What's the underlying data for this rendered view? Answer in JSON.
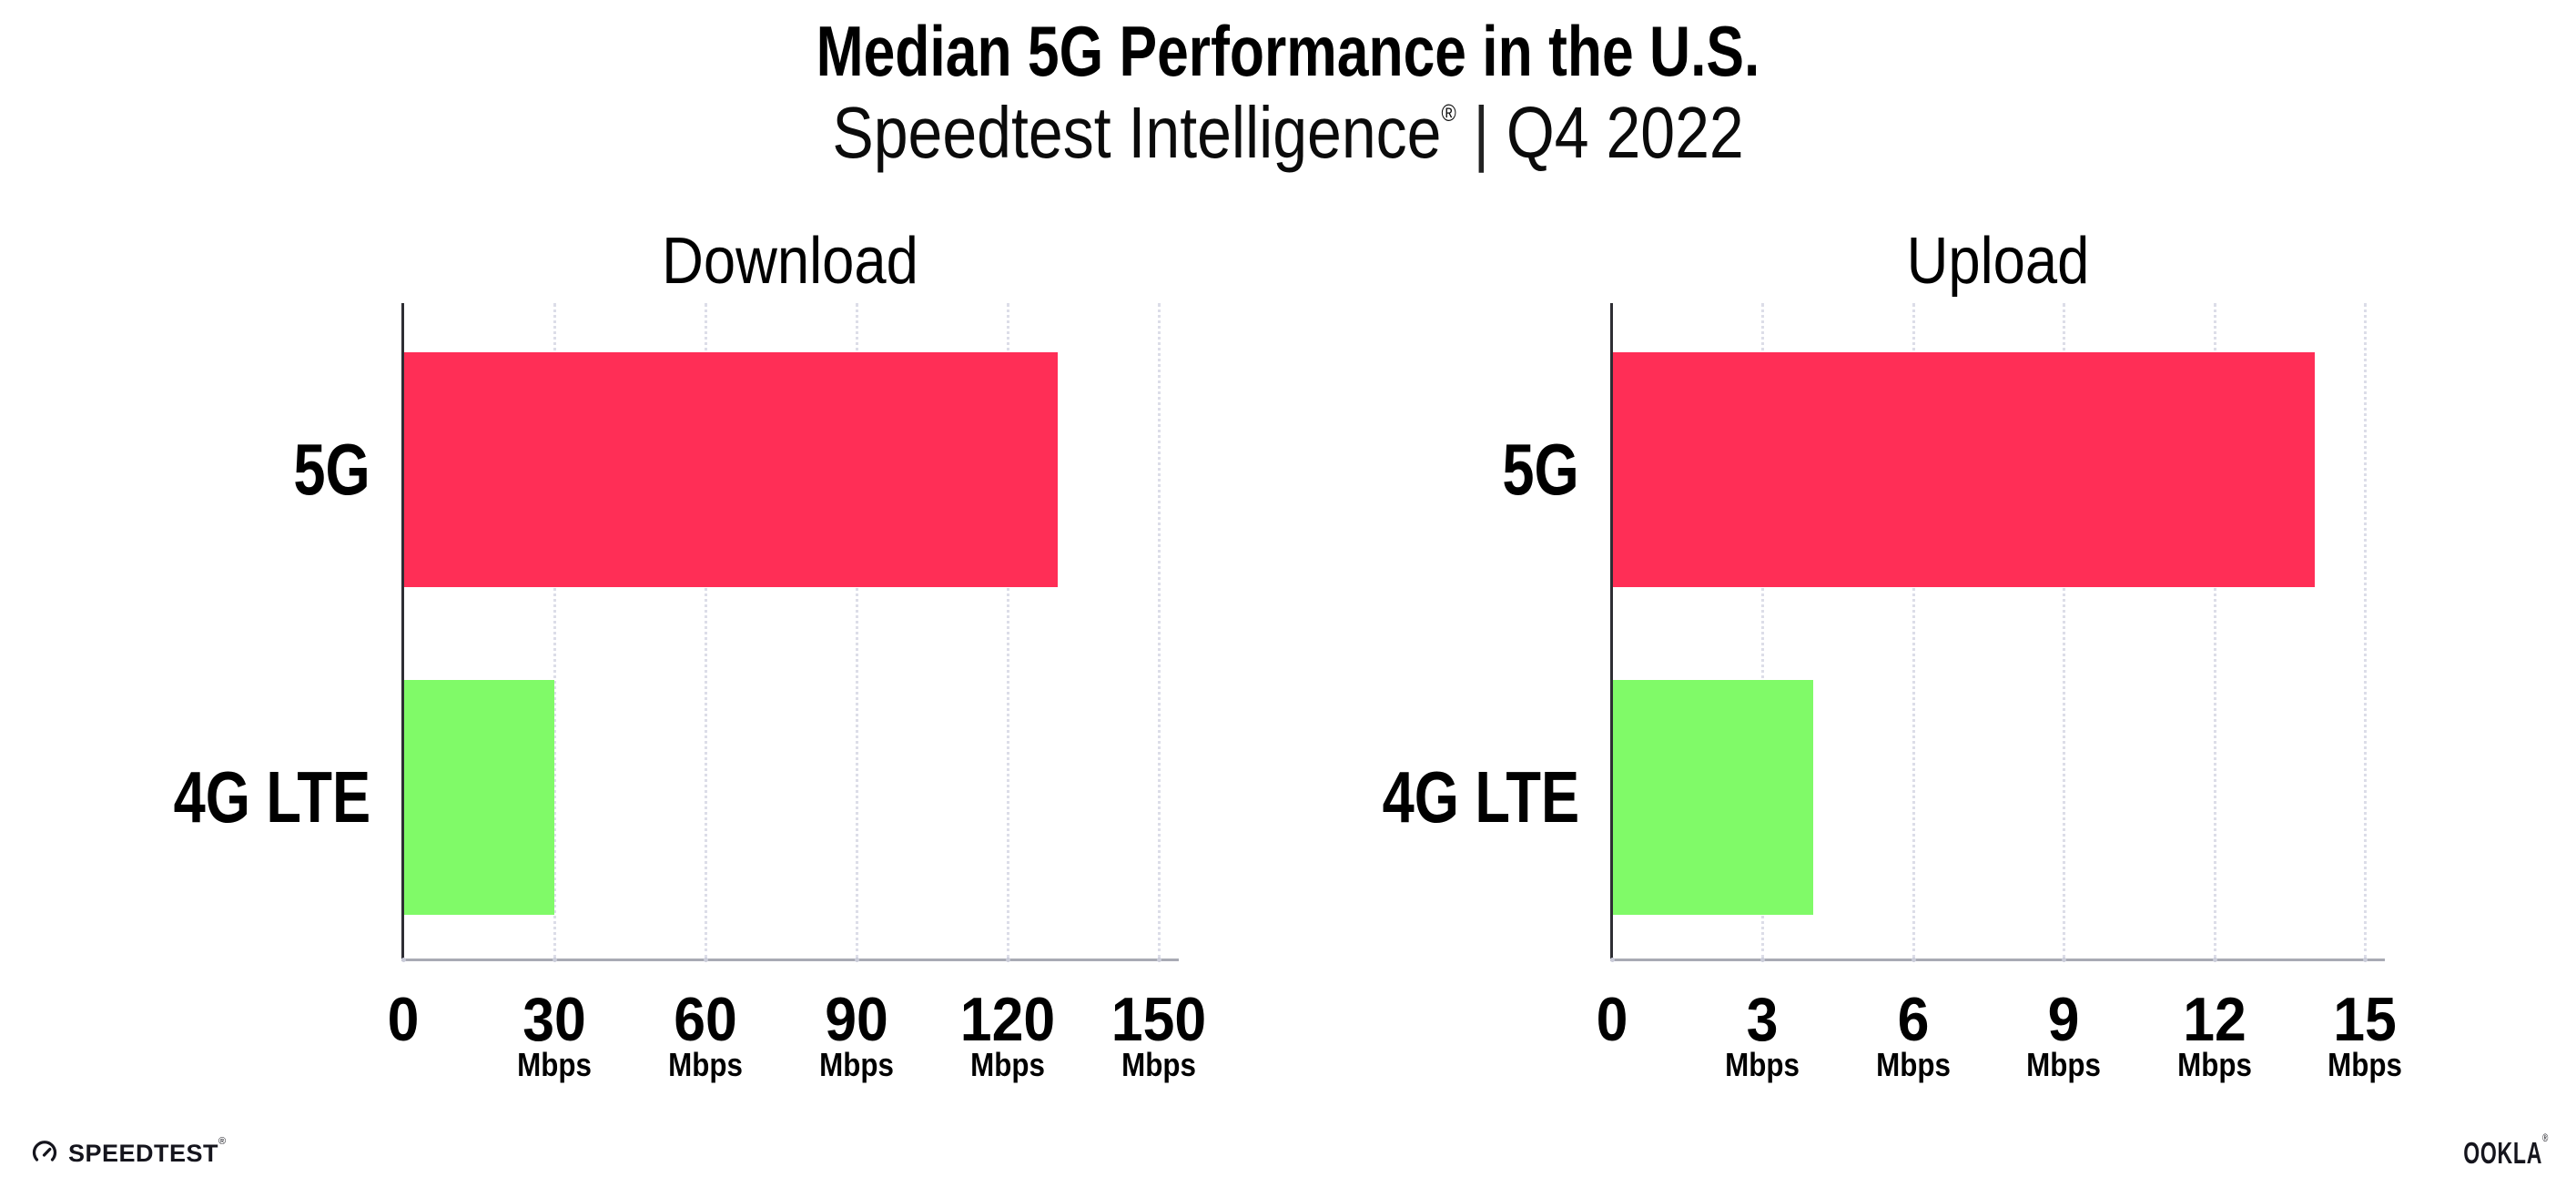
{
  "title": "Median 5G Performance in the U.S.",
  "subtitle": {
    "brand": "Speedtest Intelligence",
    "reg": "®",
    "separator": "|",
    "period": "Q4 2022"
  },
  "colors": {
    "bar_5g": "#FF2E56",
    "bar_4g": "#80FA68",
    "gridline": "#dcdde8",
    "x_axis_line": "#a8aab4",
    "y_axis_line": "#2e2e34",
    "text": "#000000"
  },
  "chart_data": [
    {
      "type": "bar",
      "orientation": "horizontal",
      "title": "Download",
      "categories": [
        "5G",
        "4G LTE"
      ],
      "values": [
        130,
        30
      ],
      "unit": "Mbps",
      "xlim": [
        0,
        150
      ],
      "xticks": [
        0,
        30,
        60,
        90,
        120,
        150
      ],
      "xtick_unit_shown_from_second_tick": true,
      "grid": "vertical-dotted",
      "legend": "none",
      "bar_colors": [
        "#FF2E56",
        "#80FA68"
      ]
    },
    {
      "type": "bar",
      "orientation": "horizontal",
      "title": "Upload",
      "categories": [
        "5G",
        "4G LTE"
      ],
      "values": [
        14,
        4
      ],
      "unit": "Mbps",
      "xlim": [
        0,
        15
      ],
      "xticks": [
        0,
        3,
        6,
        9,
        12,
        15
      ],
      "xtick_unit_shown_from_second_tick": true,
      "grid": "vertical-dotted",
      "legend": "none",
      "bar_colors": [
        "#FF2E56",
        "#80FA68"
      ]
    }
  ],
  "footer": {
    "speedtest_text": "SPEEDTEST",
    "speedtest_reg": "®",
    "ookla_text": "OOKLA",
    "ookla_reg": "®"
  }
}
